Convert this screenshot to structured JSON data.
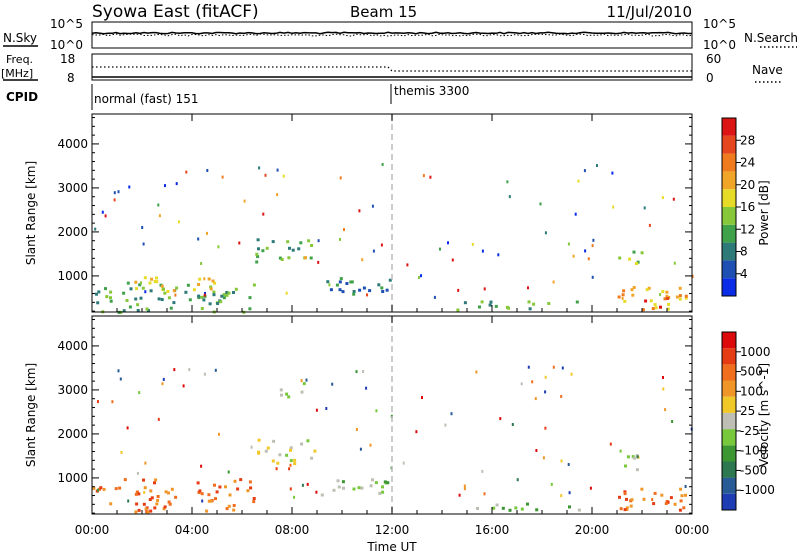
{
  "header": {
    "station": "Syowa East (fitACF)",
    "beam": "Beam 15",
    "date": "11/Jul/2010"
  },
  "summary_panels": {
    "nsky_label": "N.Sky",
    "nsearch_label": "N.Search",
    "noise_left_ticks": [
      "10^5",
      "10^0"
    ],
    "noise_right_ticks": [
      "10^5",
      "10^0"
    ],
    "freq_label": "Freq.",
    "freq_unit": "[MHz]",
    "freq_ticks": [
      "18",
      "8"
    ],
    "nave_label": "Nave",
    "nave_ticks": [
      "60",
      "0"
    ],
    "cpid_label": "CPID",
    "modes": [
      {
        "label": "normal (fast) 151",
        "start_ut": 0
      },
      {
        "label": "themis 3300",
        "start_ut": 12
      }
    ]
  },
  "time_axis": {
    "label": "Time UT",
    "ticks": [
      "00:00",
      "04:00",
      "08:00",
      "12:00",
      "16:00",
      "20:00",
      "00:00"
    ],
    "range_hours": [
      0,
      24
    ],
    "dashed_marker_ut": 12
  },
  "chart_data": [
    {
      "type": "heatmap",
      "panel": "power",
      "ylabel": "Slant Range [km]",
      "yticks": [
        "1000",
        "2000",
        "3000",
        "4000"
      ],
      "ylim": [
        180,
        4680
      ],
      "colorbar": {
        "label": "Power [dB]",
        "ticks": [
          "4",
          "8",
          "12",
          "16",
          "20",
          "24",
          "28"
        ],
        "colors": [
          "#0a2ce6",
          "#1e50b4",
          "#2d7a78",
          "#3fa24a",
          "#86c83a",
          "#e6dc28",
          "#f0a528",
          "#f07a1e",
          "#e6461e",
          "#dc1414"
        ]
      },
      "echo_regions": [
        {
          "t0": 0.0,
          "t1": 6.5,
          "r0": 200,
          "r1": 900,
          "level": 3
        },
        {
          "t0": 1.5,
          "t1": 5.0,
          "r0": 650,
          "r1": 1000,
          "level": 5
        },
        {
          "t0": 6.5,
          "t1": 9.0,
          "r0": 1350,
          "r1": 1900,
          "level": 3
        },
        {
          "t0": 7.5,
          "t1": 9.0,
          "r0": 1300,
          "r1": 1500,
          "level": 5
        },
        {
          "t0": 9.0,
          "t1": 12.0,
          "r0": 600,
          "r1": 1000,
          "level": 2
        },
        {
          "t0": 14.5,
          "t1": 19.5,
          "r0": 250,
          "r1": 450,
          "level": 3
        },
        {
          "t0": 21.0,
          "t1": 24.0,
          "r0": 250,
          "r1": 800,
          "level": 6
        },
        {
          "t0": 22.0,
          "t1": 23.0,
          "r0": 300,
          "r1": 600,
          "level": 9
        },
        {
          "t0": 21.0,
          "t1": 22.0,
          "r0": 1200,
          "r1": 1600,
          "level": 4
        }
      ]
    },
    {
      "type": "heatmap",
      "panel": "velocity",
      "ylabel": "Slant Range [km]",
      "yticks": [
        "1000",
        "2000",
        "3000",
        "4000"
      ],
      "ylim": [
        180,
        4680
      ],
      "colorbar": {
        "label": "Velocity [m s^-1]",
        "ticks": [
          "1000",
          "500",
          "100",
          "25",
          "-25",
          "-100",
          "-500",
          "-1000"
        ],
        "colors": [
          "#1e3cb4",
          "#285a96",
          "#2d7850",
          "#3c9632",
          "#78c83c",
          "#bebeb4",
          "#f0c828",
          "#f09628",
          "#f06e1e",
          "#e63c14",
          "#dc0a0a"
        ]
      },
      "echo_regions": [
        {
          "t0": 0.0,
          "t1": 6.5,
          "r0": 250,
          "r1": 1000,
          "level": 8
        },
        {
          "t0": 6.5,
          "t1": 9.0,
          "r0": 1350,
          "r1": 1900,
          "level": 5
        },
        {
          "t0": 7.5,
          "t1": 8.5,
          "r0": 2800,
          "r1": 3200,
          "level": 5
        },
        {
          "t0": 9.0,
          "t1": 12.0,
          "r0": 600,
          "r1": 1000,
          "level": 4
        },
        {
          "t0": 14.5,
          "t1": 19.5,
          "r0": 250,
          "r1": 450,
          "level": 4
        },
        {
          "t0": 21.0,
          "t1": 24.0,
          "r0": 250,
          "r1": 800,
          "level": 8
        },
        {
          "t0": 21.0,
          "t1": 22.0,
          "r0": 1200,
          "r1": 1600,
          "level": 5
        }
      ]
    }
  ]
}
